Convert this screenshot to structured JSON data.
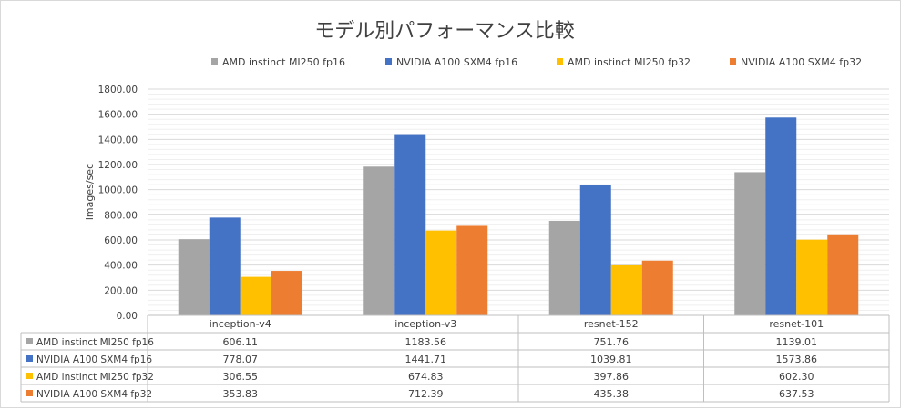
{
  "chart_data": {
    "type": "bar",
    "title": "モデル別パフォーマンス比較",
    "ylabel": "images/sec",
    "xlabel": "",
    "ylim": [
      0,
      1800
    ],
    "y_ticks": [
      "0.00",
      "200.00",
      "400.00",
      "600.00",
      "800.00",
      "1000.00",
      "1200.00",
      "1400.00",
      "1600.00",
      "1800.00"
    ],
    "y_tick_values": [
      0,
      200,
      400,
      600,
      800,
      1000,
      1200,
      1400,
      1600,
      1800
    ],
    "grid": true,
    "legend_position": "top",
    "categories": [
      "inception-v4",
      "inception-v3",
      "resnet-152",
      "resnet-101"
    ],
    "series": [
      {
        "name": "AMD instinct MI250 fp16",
        "color": "#a5a5a5",
        "values": [
          606.11,
          1183.56,
          751.76,
          1139.01
        ],
        "labels": [
          "606.11",
          "1183.56",
          "751.76",
          "1139.01"
        ]
      },
      {
        "name": "NVIDIA A100 SXM4 fp16",
        "color": "#4472c4",
        "values": [
          778.07,
          1441.71,
          1039.81,
          1573.86
        ],
        "labels": [
          "778.07",
          "1441.71",
          "1039.81",
          "1573.86"
        ]
      },
      {
        "name": "AMD instinct MI250 fp32",
        "color": "#ffc000",
        "values": [
          306.55,
          674.83,
          397.86,
          602.3
        ],
        "labels": [
          "306.55",
          "674.83",
          "397.86",
          "602.30"
        ]
      },
      {
        "name": "NVIDIA A100 SXM4 fp32",
        "color": "#ed7d31",
        "values": [
          353.83,
          712.39,
          435.38,
          637.53
        ],
        "labels": [
          "353.83",
          "712.39",
          "435.38",
          "637.53"
        ]
      }
    ],
    "data_table": true
  }
}
